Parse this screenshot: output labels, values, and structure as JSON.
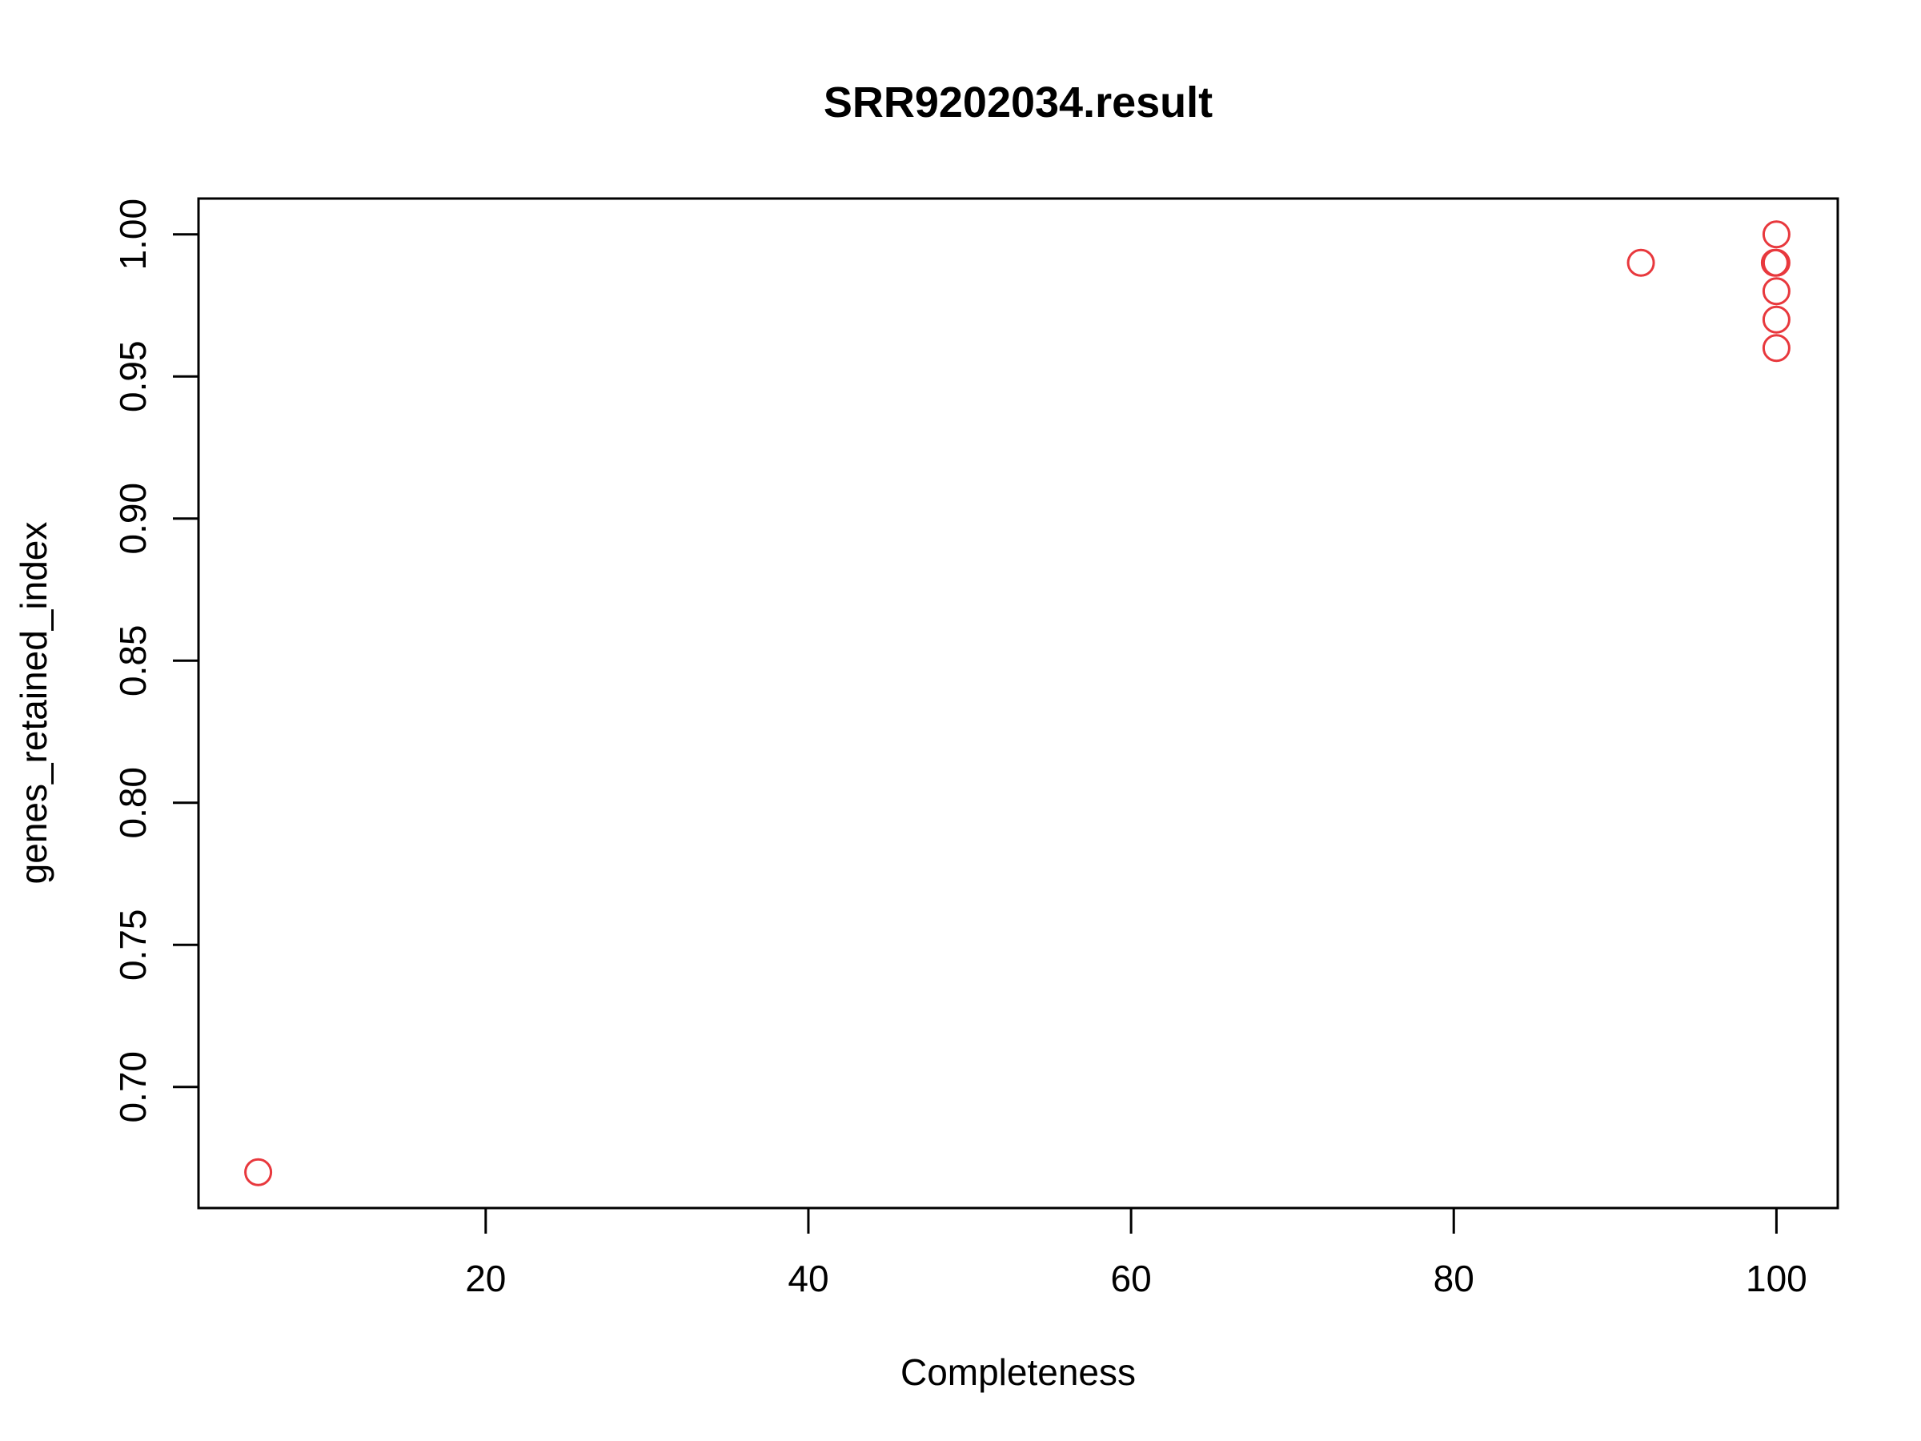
{
  "chart_data": {
    "type": "scatter",
    "title": "SRR9202034.result",
    "xlabel": "Completeness",
    "ylabel": "genes_retained_index",
    "xlim": [
      2.2,
      103.8
    ],
    "ylim": [
      0.6574,
      1.0126
    ],
    "xticks": [
      20,
      40,
      60,
      80,
      100
    ],
    "xtick_labels": [
      "20",
      "40",
      "60",
      "80",
      "100"
    ],
    "yticks": [
      0.7,
      0.75,
      0.8,
      0.85,
      0.9,
      0.95,
      1.0
    ],
    "ytick_labels": [
      "0.70",
      "0.75",
      "0.80",
      "0.85",
      "0.90",
      "0.95",
      "1.00"
    ],
    "point_color": "#e8383d",
    "marker": "open-circle",
    "grid": false,
    "points": [
      {
        "x": 5.9,
        "y": 0.67
      },
      {
        "x": 91.6,
        "y": 0.99
      },
      {
        "x": 100,
        "y": 1.0
      },
      {
        "x": 100,
        "y": 0.99
      },
      {
        "x": 99.9,
        "y": 0.99
      },
      {
        "x": 100,
        "y": 0.98
      },
      {
        "x": 100,
        "y": 0.97
      },
      {
        "x": 100,
        "y": 0.96
      }
    ]
  }
}
